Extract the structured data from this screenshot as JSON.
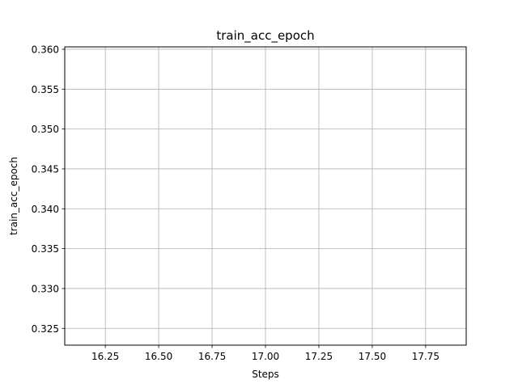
{
  "chart_data": {
    "type": "line",
    "title": "train_acc_epoch",
    "xlabel": "Steps",
    "ylabel": "train_acc_epoch",
    "xlim": [
      16.06,
      17.94
    ],
    "ylim": [
      0.3229,
      0.3603
    ],
    "x_ticks": [
      16.25,
      16.5,
      16.75,
      17.0,
      17.25,
      17.5,
      17.75
    ],
    "x_tick_labels": [
      "16.25",
      "16.50",
      "16.75",
      "17.00",
      "17.25",
      "17.50",
      "17.75"
    ],
    "y_ticks": [
      0.325,
      0.33,
      0.335,
      0.34,
      0.345,
      0.35,
      0.355,
      0.36
    ],
    "y_tick_labels": [
      "0.325",
      "0.330",
      "0.335",
      "0.340",
      "0.345",
      "0.350",
      "0.355",
      "0.360"
    ],
    "grid": true,
    "series": []
  }
}
